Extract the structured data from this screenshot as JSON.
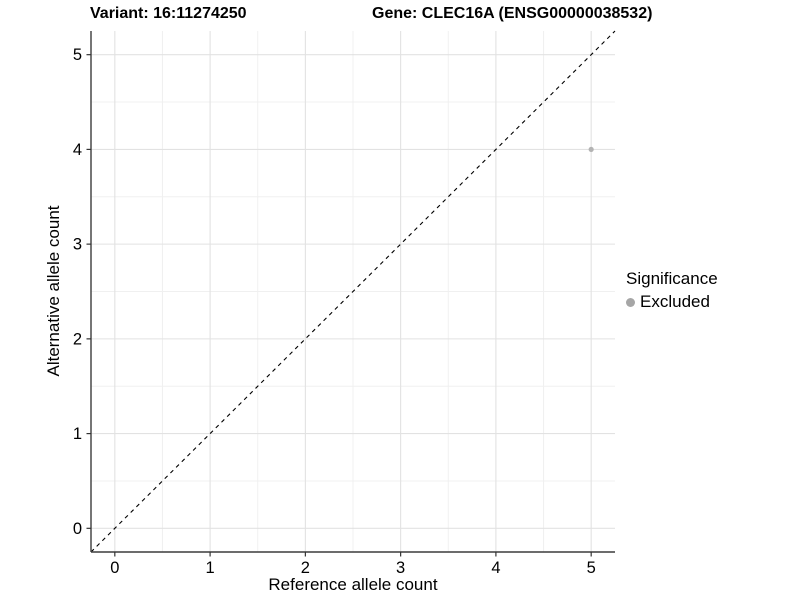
{
  "header": {
    "variant_title": "Variant: 16:11274250",
    "gene_title": "Gene: CLEC16A (ENSG00000038532)"
  },
  "legend": {
    "title": "Significance",
    "items": [
      {
        "label": "Excluded",
        "color": "#a6a6a6"
      }
    ]
  },
  "colors": {
    "point": "#b3b3b3",
    "major_grid": "#e2e2e2",
    "minor_grid": "#f0f0f0",
    "axis_line": "#3c3c3c",
    "tick_mark": "#333333",
    "reference_line": "#000000",
    "background": "#ffffff"
  },
  "chart_data": {
    "type": "scatter",
    "title": "Variant: 16:11274250   Gene: CLEC16A (ENSG00000038532)",
    "xlabel": "Reference allele count",
    "ylabel": "Alternative allele count",
    "xlim": [
      -0.25,
      5.25
    ],
    "ylim": [
      -0.25,
      5.25
    ],
    "xticks": [
      0,
      1,
      2,
      3,
      4,
      5
    ],
    "yticks": [
      0,
      1,
      2,
      3,
      4,
      5
    ],
    "grid": true,
    "minor_grid": true,
    "legend_position": "right",
    "reference_line": {
      "type": "abline",
      "slope": 1,
      "intercept": 0,
      "style": "dashed"
    },
    "series": [
      {
        "name": "Excluded",
        "color": "#b3b3b3",
        "points": [
          {
            "x": 5,
            "y": 4
          }
        ]
      }
    ]
  }
}
